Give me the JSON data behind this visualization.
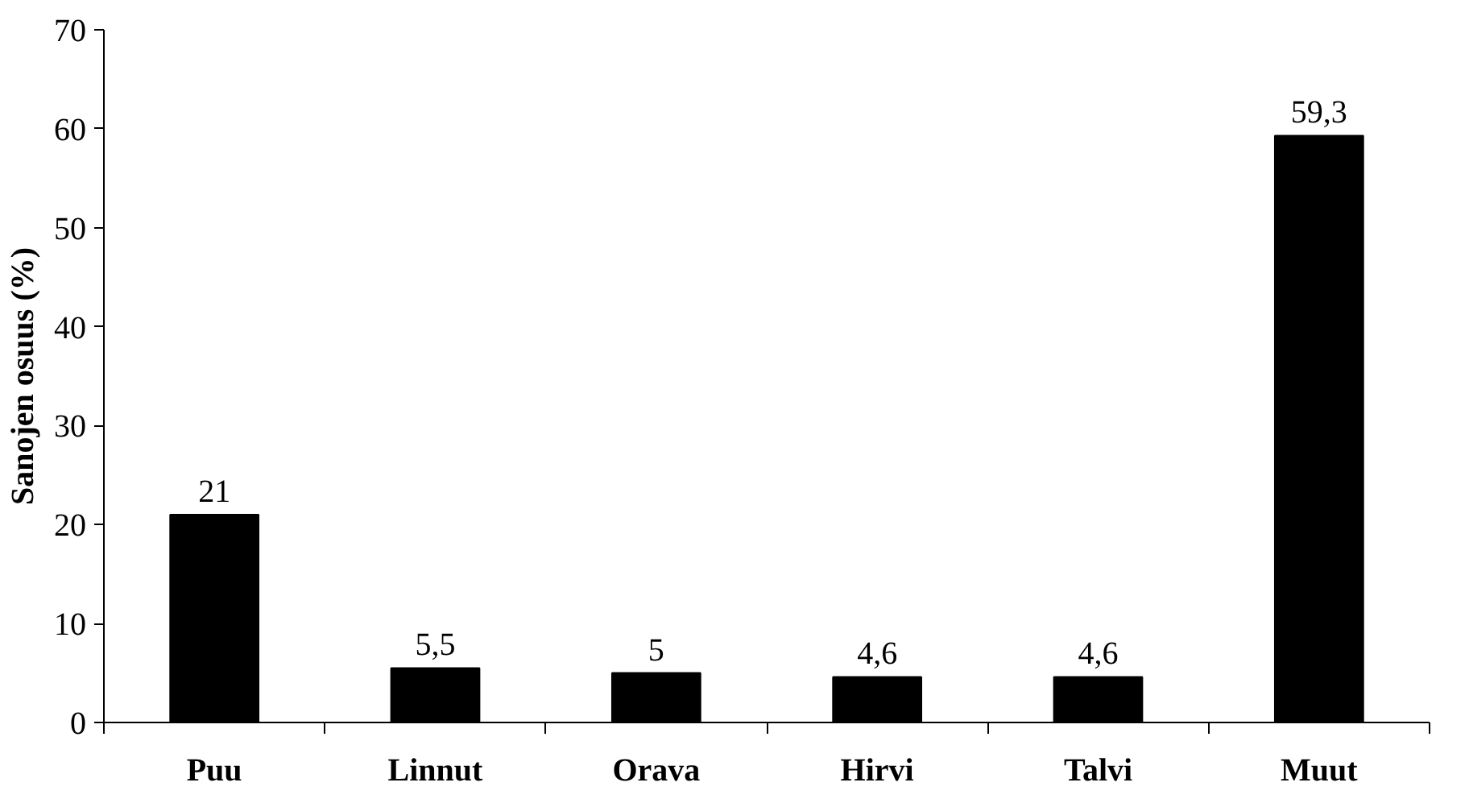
{
  "chart_data": {
    "type": "bar",
    "ylabel": "Sanojen osuus (%)",
    "categories": [
      "Puu",
      "Linnut",
      "Orava",
      "Hirvi",
      "Talvi",
      "Muut"
    ],
    "values": [
      21,
      5.5,
      5,
      4.6,
      4.6,
      59.3
    ],
    "value_labels": [
      "21",
      "5,5",
      "5",
      "4,6",
      "4,6",
      "59,3"
    ],
    "color": "#000000",
    "ylim": [
      0,
      70
    ],
    "yticks": [
      0,
      10,
      20,
      30,
      40,
      50,
      60,
      70
    ],
    "grid": false
  }
}
